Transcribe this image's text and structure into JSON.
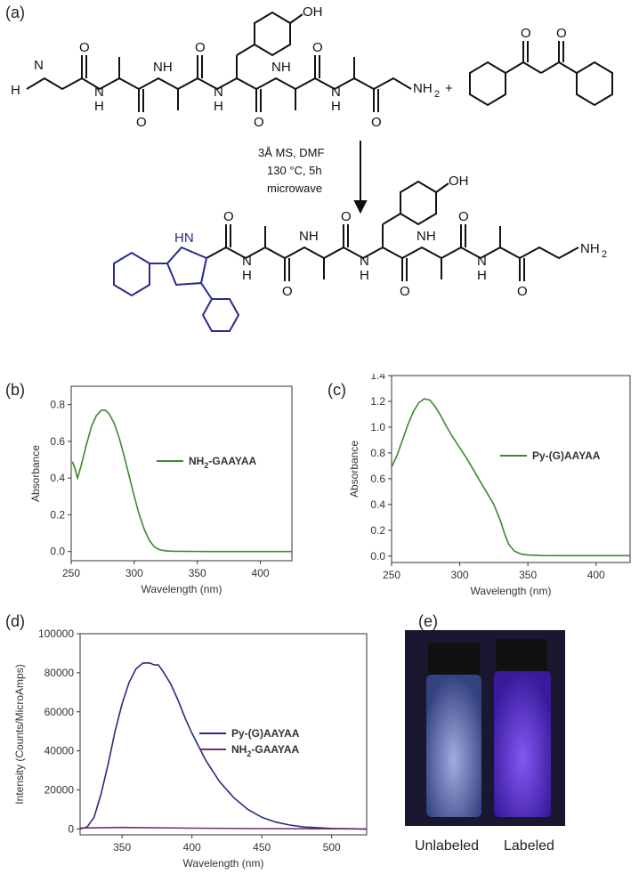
{
  "panels": {
    "a": "(a)",
    "b": "(b)",
    "c": "(c)",
    "d": "(d)",
    "e": "(e)"
  },
  "scheme": {
    "conditions": [
      "3Å MS, DMF",
      "130 °C, 5h",
      "microwave"
    ],
    "plus": "+",
    "atom_labels": {
      "OH": "OH",
      "H": "H",
      "N": "N",
      "NH": "NH",
      "HN": "HN",
      "O": "O",
      "NH2": "NH",
      "sub2": "2"
    }
  },
  "photo": {
    "labels": [
      "Unlabeled",
      "Labeled"
    ],
    "colors": {
      "bg": "#1a1830",
      "unlabeled_glow": "#8fa8ff",
      "labeled_glow": "#6a3cff"
    }
  },
  "chart_data": [
    {
      "panel": "b",
      "type": "line",
      "xlabel": "Wavelength (nm)",
      "ylabel": "Absorbance",
      "xlim": [
        250,
        425
      ],
      "ylim": [
        -0.05,
        0.9
      ],
      "xticks": [
        250,
        300,
        350,
        400
      ],
      "yticks": [
        0.0,
        0.2,
        0.4,
        0.6,
        0.8
      ],
      "ytick_labels": [
        "0.0",
        "0.2",
        "0.4",
        "0.6",
        "0.8"
      ],
      "legend_position": "right",
      "series": [
        {
          "name": "NH2-GAAYAA",
          "name_main": "NH",
          "name_sub": "2",
          "name_rest": "-GAAYAA",
          "color": "#3a8a2a",
          "x": [
            251,
            253,
            255,
            258,
            262,
            266,
            270,
            274,
            277,
            280,
            284,
            288,
            292,
            296,
            300,
            304,
            308,
            312,
            316,
            320,
            325,
            330,
            340,
            360,
            380,
            400,
            425
          ],
          "y": [
            0.49,
            0.45,
            0.4,
            0.47,
            0.58,
            0.68,
            0.74,
            0.77,
            0.77,
            0.75,
            0.7,
            0.62,
            0.52,
            0.41,
            0.3,
            0.2,
            0.12,
            0.06,
            0.025,
            0.01,
            0.004,
            0.002,
            0.001,
            0.0,
            0.0,
            0.0,
            0.0
          ]
        }
      ]
    },
    {
      "panel": "c",
      "type": "line",
      "xlabel": "Wavelength (nm)",
      "ylabel": "Absorbance",
      "xlim": [
        250,
        425
      ],
      "ylim": [
        -0.05,
        1.4
      ],
      "xticks": [
        250,
        300,
        350,
        400
      ],
      "yticks": [
        0.0,
        0.2,
        0.4,
        0.6,
        0.8,
        1.0,
        1.2,
        1.4
      ],
      "ytick_labels": [
        "0.0",
        "0.2",
        "0.4",
        "0.6",
        "0.8",
        "1.0",
        "1.2",
        "1.4"
      ],
      "legend_position": "right",
      "series": [
        {
          "name": "Py-(G)AAYAA",
          "color": "#3a8a2a",
          "x": [
            250,
            254,
            258,
            262,
            266,
            270,
            274,
            278,
            282,
            286,
            290,
            295,
            300,
            305,
            310,
            315,
            320,
            325,
            330,
            333,
            336,
            340,
            345,
            350,
            360,
            380,
            400,
            425
          ],
          "y": [
            0.69,
            0.78,
            0.9,
            1.02,
            1.12,
            1.19,
            1.22,
            1.21,
            1.16,
            1.09,
            1.01,
            0.92,
            0.84,
            0.76,
            0.67,
            0.58,
            0.49,
            0.4,
            0.27,
            0.17,
            0.09,
            0.04,
            0.015,
            0.008,
            0.004,
            0.003,
            0.003,
            0.003
          ]
        }
      ]
    },
    {
      "panel": "d",
      "type": "line",
      "xlabel": "Wavelength (nm)",
      "ylabel": "Intensity (Counts/MicroAmps)",
      "xlim": [
        320,
        525
      ],
      "ylim": [
        -3000,
        100000
      ],
      "xticks": [
        350,
        400,
        450,
        500
      ],
      "yticks": [
        0,
        20000,
        40000,
        60000,
        80000,
        100000
      ],
      "ytick_labels": [
        "0",
        "20000",
        "40000",
        "60000",
        "80000",
        "100000"
      ],
      "legend_position": "right",
      "series": [
        {
          "name": "Py-(G)AAYAA",
          "color": "#2a2a80",
          "x": [
            320,
            325,
            330,
            335,
            340,
            345,
            350,
            355,
            360,
            365,
            370,
            373,
            376,
            380,
            385,
            390,
            395,
            400,
            410,
            420,
            430,
            440,
            450,
            460,
            470,
            480,
            500,
            525
          ],
          "y": [
            0,
            1000,
            6000,
            18000,
            33000,
            50000,
            64000,
            75000,
            82000,
            85000,
            85000,
            84000,
            84000,
            80000,
            74000,
            66000,
            57000,
            49000,
            35000,
            24000,
            16000,
            10000,
            6000,
            3500,
            2000,
            1000,
            300,
            0
          ]
        },
        {
          "name": "NH2-GAAYAA",
          "name_main": "NH",
          "name_sub": "2",
          "name_rest": "-GAAYAA",
          "color": "#7a2a6a",
          "x": [
            320,
            350,
            400,
            450,
            500,
            525
          ],
          "y": [
            500,
            800,
            400,
            200,
            100,
            0
          ]
        }
      ]
    }
  ]
}
